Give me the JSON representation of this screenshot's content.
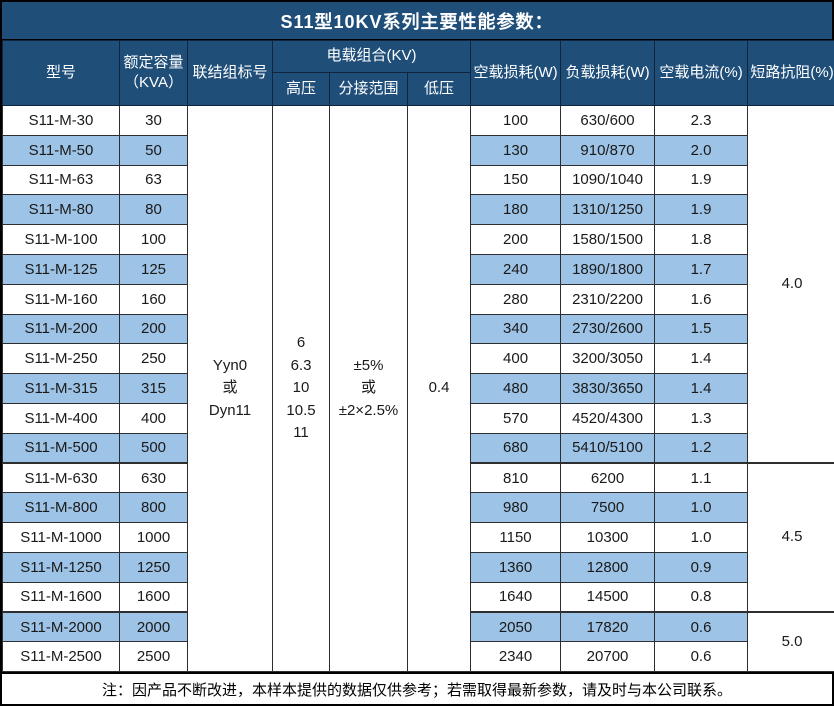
{
  "title": "S11型10KV系列主要性能参数：",
  "colors": {
    "header_navy": "#1F4E79",
    "header_border_navy": "#10243E",
    "stripe_blue": "#9DC3E6"
  },
  "table": {
    "headers": {
      "model": "型号",
      "capacity": "额定容量\n（KVA）",
      "connection": "联结组标号",
      "voltage_group": "电载组合(KV)",
      "high_voltage": "高压",
      "tap_range": "分接范围",
      "low_voltage": "低压",
      "no_load_loss": "空载损耗(W)",
      "load_loss": "负载损耗(W)",
      "no_load_current": "空载电流(%)",
      "impedance": "短路抗阻(%)"
    },
    "merged": {
      "connection": "Yyn0\n或\nDyn11",
      "high_voltage": "6\n6.3\n10\n10.5\n11",
      "tap_range": "±5%\n或\n±2×2.5%",
      "low_voltage": "0.4"
    },
    "impedance_groups": [
      {
        "value": "4.0",
        "rows": 12
      },
      {
        "value": "4.5",
        "rows": 5
      },
      {
        "value": "5.0",
        "rows": 2
      }
    ],
    "rows": [
      {
        "model": "S11-M-30",
        "capacity": "30",
        "no_load_loss": "100",
        "load_loss": "630/600",
        "no_load_current": "2.3"
      },
      {
        "model": "S11-M-50",
        "capacity": "50",
        "no_load_loss": "130",
        "load_loss": "910/870",
        "no_load_current": "2.0"
      },
      {
        "model": "S11-M-63",
        "capacity": "63",
        "no_load_loss": "150",
        "load_loss": "1090/1040",
        "no_load_current": "1.9"
      },
      {
        "model": "S11-M-80",
        "capacity": "80",
        "no_load_loss": "180",
        "load_loss": "1310/1250",
        "no_load_current": "1.9"
      },
      {
        "model": "S11-M-100",
        "capacity": "100",
        "no_load_loss": "200",
        "load_loss": "1580/1500",
        "no_load_current": "1.8"
      },
      {
        "model": "S11-M-125",
        "capacity": "125",
        "no_load_loss": "240",
        "load_loss": "1890/1800",
        "no_load_current": "1.7"
      },
      {
        "model": "S11-M-160",
        "capacity": "160",
        "no_load_loss": "280",
        "load_loss": "2310/2200",
        "no_load_current": "1.6"
      },
      {
        "model": "S11-M-200",
        "capacity": "200",
        "no_load_loss": "340",
        "load_loss": "2730/2600",
        "no_load_current": "1.5"
      },
      {
        "model": "S11-M-250",
        "capacity": "250",
        "no_load_loss": "400",
        "load_loss": "3200/3050",
        "no_load_current": "1.4"
      },
      {
        "model": "S11-M-315",
        "capacity": "315",
        "no_load_loss": "480",
        "load_loss": "3830/3650",
        "no_load_current": "1.4"
      },
      {
        "model": "S11-M-400",
        "capacity": "400",
        "no_load_loss": "570",
        "load_loss": "4520/4300",
        "no_load_current": "1.3"
      },
      {
        "model": "S11-M-500",
        "capacity": "500",
        "no_load_loss": "680",
        "load_loss": "5410/5100",
        "no_load_current": "1.2"
      },
      {
        "model": "S11-M-630",
        "capacity": "630",
        "no_load_loss": "810",
        "load_loss": "6200",
        "no_load_current": "1.1"
      },
      {
        "model": "S11-M-800",
        "capacity": "800",
        "no_load_loss": "980",
        "load_loss": "7500",
        "no_load_current": "1.0"
      },
      {
        "model": "S11-M-1000",
        "capacity": "1000",
        "no_load_loss": "1150",
        "load_loss": "10300",
        "no_load_current": "1.0"
      },
      {
        "model": "S11-M-1250",
        "capacity": "1250",
        "no_load_loss": "1360",
        "load_loss": "12800",
        "no_load_current": "0.9"
      },
      {
        "model": "S11-M-1600",
        "capacity": "1600",
        "no_load_loss": "1640",
        "load_loss": "14500",
        "no_load_current": "0.8"
      },
      {
        "model": "S11-M-2000",
        "capacity": "2000",
        "no_load_loss": "2050",
        "load_loss": "17820",
        "no_load_current": "0.6"
      },
      {
        "model": "S11-M-2500",
        "capacity": "2500",
        "no_load_loss": "2340",
        "load_loss": "20700",
        "no_load_current": "0.6"
      }
    ]
  },
  "footer_note": "注：因产品不断改进，本样本提供的数据仅供参考；若需取得最新参数，请及时与本公司联系。"
}
